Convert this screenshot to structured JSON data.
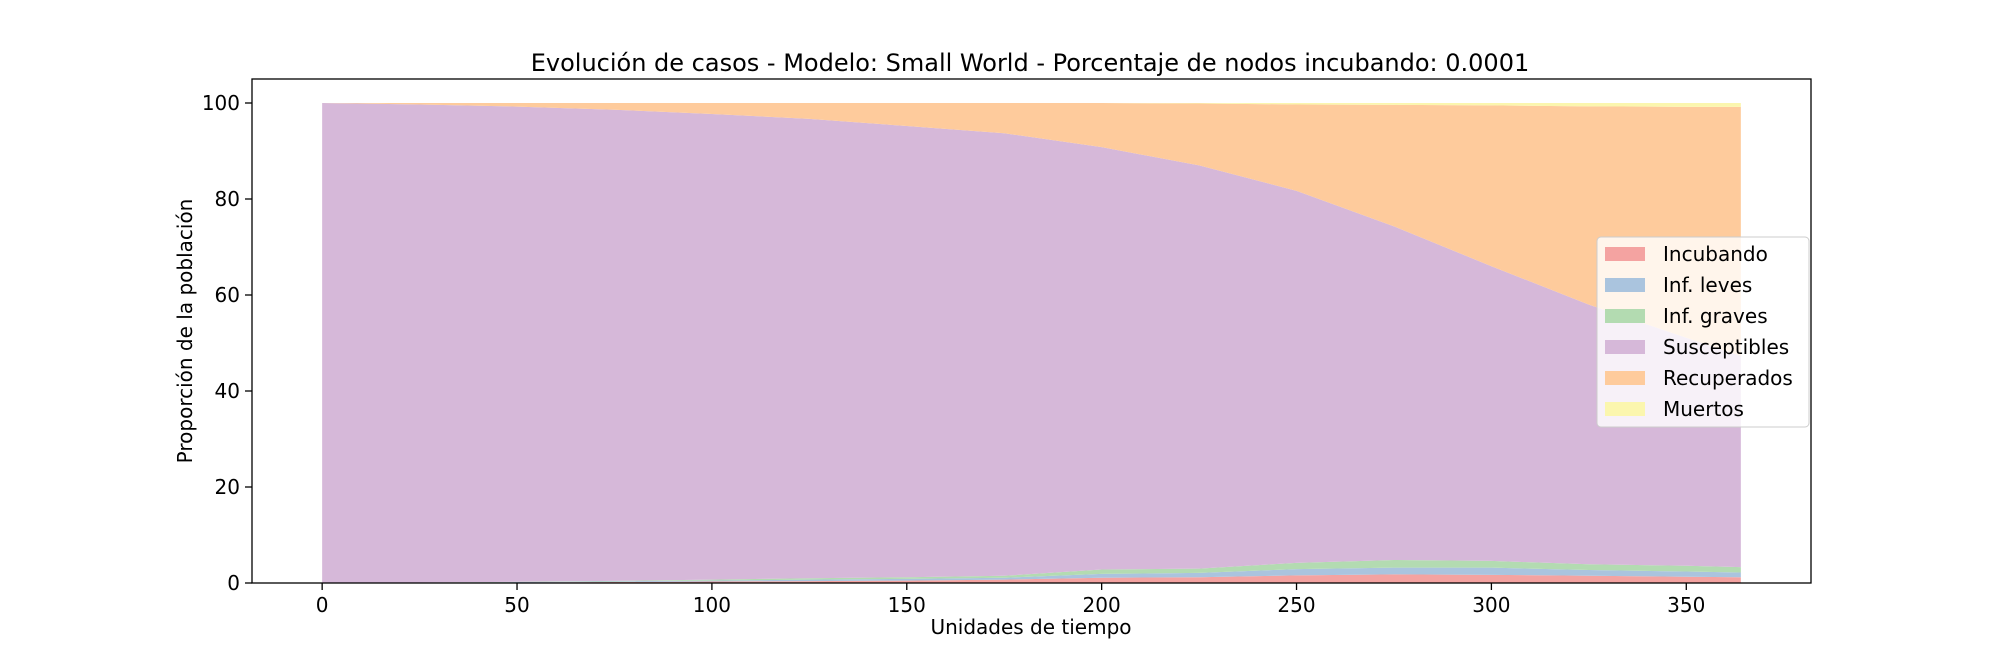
{
  "chart_data": {
    "type": "area",
    "stacked": true,
    "title": "Evolución de casos - Modelo: Small World - Porcentaje de nodos incubando: 0.0001",
    "xlabel": "Unidades de tiempo",
    "ylabel": "Proporción de la población",
    "xlim": [
      -18,
      382
    ],
    "ylim": [
      0,
      105
    ],
    "xticks": [
      0,
      50,
      100,
      150,
      200,
      250,
      300,
      350
    ],
    "yticks": [
      0,
      20,
      40,
      60,
      80,
      100
    ],
    "grid": false,
    "legend_position": "center-right",
    "x": [
      0,
      25,
      50,
      75,
      100,
      125,
      150,
      175,
      200,
      225,
      250,
      275,
      300,
      325,
      350,
      364
    ],
    "series": [
      {
        "name": "Incubando",
        "color": "#f4a3a1",
        "values": [
          0.01,
          0.05,
          0.1,
          0.2,
          0.3,
          0.4,
          0.5,
          0.7,
          1.1,
          1.2,
          1.6,
          1.8,
          1.7,
          1.5,
          1.3,
          1.2
        ]
      },
      {
        "name": "Inf. leves",
        "color": "#aac4de",
        "values": [
          0,
          0.03,
          0.1,
          0.15,
          0.2,
          0.3,
          0.35,
          0.4,
          0.8,
          0.9,
          1.3,
          1.4,
          1.5,
          1.2,
          1.1,
          1.0
        ]
      },
      {
        "name": "Inf. graves",
        "color": "#b3dbb1",
        "values": [
          0,
          0.02,
          0.05,
          0.1,
          0.2,
          0.3,
          0.35,
          0.4,
          0.9,
          0.9,
          1.3,
          1.6,
          1.4,
          1.2,
          1.2,
          1.1
        ]
      },
      {
        "name": "Susceptibles",
        "color": "#d6b8d9",
        "values": [
          99.99,
          99.6,
          99.0,
          98.15,
          97.0,
          95.7,
          94.0,
          92.2,
          88.0,
          84.0,
          77.5,
          69.5,
          61.4,
          54.1,
          47.5,
          44.0
        ]
      },
      {
        "name": "Recuperados",
        "color": "#fecb9c",
        "values": [
          0,
          0.3,
          0.75,
          1.4,
          2.3,
          3.3,
          4.8,
          6.3,
          9.2,
          12.9,
          18.0,
          25.3,
          33.5,
          41.3,
          48.1,
          51.9
        ]
      },
      {
        "name": "Muertos",
        "color": "#fbf6ae",
        "values": [
          0,
          0,
          0,
          0,
          0,
          0,
          0,
          0,
          0,
          0.1,
          0.3,
          0.4,
          0.5,
          0.7,
          0.8,
          0.8
        ]
      }
    ]
  }
}
